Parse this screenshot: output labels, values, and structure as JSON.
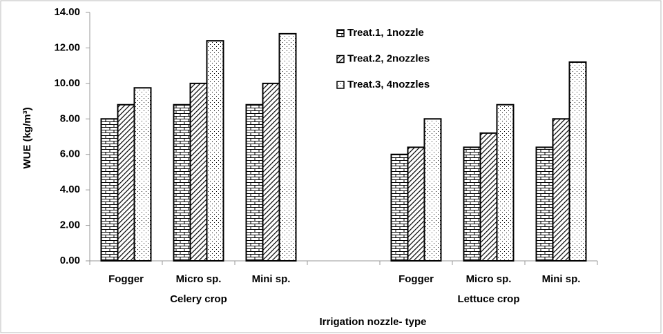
{
  "chart_data": {
    "type": "bar",
    "y_label": "WUE (kg/m³)",
    "x_label": "Irrigation nozzle- type",
    "groups": [
      "Celery crop",
      "Lettuce crop"
    ],
    "categories": [
      "Fogger",
      "Micro sp.",
      "Mini sp.",
      null,
      "Fogger",
      "Micro sp.",
      "Mini sp."
    ],
    "series": [
      {
        "name": "Treat.1, 1nozzle",
        "color": "#000000",
        "pattern": "brick",
        "values": [
          8.0,
          8.8,
          8.8,
          null,
          6.0,
          6.4,
          6.4
        ]
      },
      {
        "name": "Treat.2, 2nozzles",
        "color": "#000000",
        "pattern": "diagonal",
        "values": [
          8.8,
          10.0,
          10.0,
          null,
          6.4,
          7.2,
          8.0
        ]
      },
      {
        "name": "Treat.3, 4nozzles",
        "color": "#000000",
        "pattern": "dots",
        "values": [
          9.75,
          12.4,
          12.8,
          null,
          8.0,
          8.8,
          11.2
        ]
      }
    ],
    "ylim": [
      0,
      14
    ],
    "yticks": [
      {
        "value": 0,
        "label": "0.00"
      },
      {
        "value": 2,
        "label": "2.00"
      },
      {
        "value": 4,
        "label": "4.00"
      },
      {
        "value": 6,
        "label": "6.00"
      },
      {
        "value": 8,
        "label": "8.00"
      },
      {
        "value": 10,
        "label": "10.00"
      },
      {
        "value": 12,
        "label": "12.00"
      },
      {
        "value": 14,
        "label": "14.00"
      }
    ],
    "legend": "top-right"
  }
}
